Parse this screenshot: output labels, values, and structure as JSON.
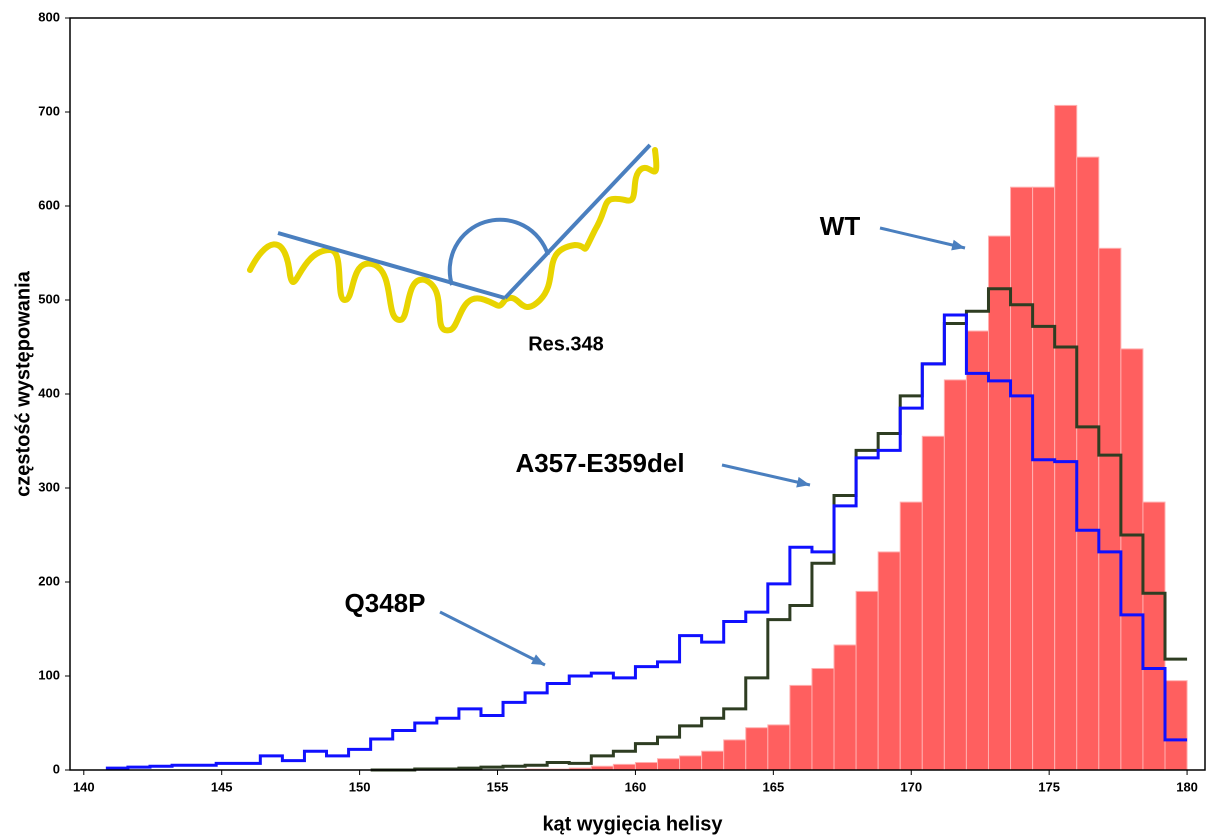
{
  "chart_data": {
    "type": "histogram",
    "xlabel": "kąt wygięcia helisy",
    "ylabel": "częstość występowania",
    "xlim": [
      139.5,
      180.65
    ],
    "ylim": [
      0,
      800
    ],
    "xticks": [
      140,
      145,
      150,
      155,
      160,
      165,
      170,
      175,
      180
    ],
    "yticks": [
      0,
      100,
      200,
      300,
      400,
      500,
      600,
      700,
      800
    ],
    "series": [
      {
        "name": "WT",
        "style": "bars",
        "color": "#ff5f5f",
        "bins": [
          156,
          156.8,
          157.6,
          158.4,
          159.2,
          160,
          160.8,
          161.6,
          162.4,
          163.2,
          164,
          164.8,
          165.6,
          166.4,
          167.2,
          168,
          168.8,
          169.6,
          170.4,
          171.2,
          172,
          172.8,
          173.6,
          174.4,
          175.2,
          176,
          176.8,
          177.6,
          178.4,
          179.2,
          180
        ],
        "values": [
          1,
          1,
          2,
          4,
          6,
          8,
          12,
          15,
          20,
          32,
          45,
          48,
          90,
          108,
          133,
          190,
          232,
          285,
          355,
          415,
          467,
          568,
          620,
          620,
          707,
          652,
          555,
          448,
          285,
          95
        ]
      },
      {
        "name": "A357-E359del",
        "style": "step",
        "color": "#2e3d22",
        "bins": [
          150.4,
          151.2,
          152,
          152.8,
          153.6,
          154.4,
          155.2,
          156,
          156.8,
          157.6,
          158.4,
          159.2,
          160,
          160.8,
          161.6,
          162.4,
          163.2,
          164,
          164.8,
          165.6,
          166.4,
          167.2,
          168,
          168.8,
          169.6,
          170.4,
          171.2,
          172,
          172.8,
          173.6,
          174.4,
          175.2,
          176,
          176.8,
          177.6,
          178.4,
          179.2,
          180
        ],
        "values": [
          0,
          0,
          1,
          1,
          2,
          3,
          4,
          5,
          8,
          7,
          15,
          20,
          28,
          35,
          47,
          55,
          65,
          98,
          160,
          175,
          220,
          292,
          340,
          358,
          398,
          432,
          475,
          488,
          512,
          495,
          472,
          450,
          365,
          335,
          250,
          188,
          118
        ]
      },
      {
        "name": "Q348P",
        "style": "step",
        "color": "#1010ff",
        "bins": [
          140.8,
          141.6,
          142.4,
          143.2,
          144,
          144.8,
          145.6,
          146.4,
          147.2,
          148,
          148.8,
          149.6,
          150.4,
          151.2,
          152,
          152.8,
          153.6,
          154.4,
          155.2,
          156,
          156.8,
          157.6,
          158.4,
          159.2,
          160,
          160.8,
          161.6,
          162.4,
          163.2,
          164,
          164.8,
          165.6,
          166.4,
          167.2,
          168,
          168.8,
          169.6,
          170.4,
          171.2,
          172,
          172.8,
          173.6,
          174.4,
          175.2,
          176,
          176.8,
          177.6,
          178.4,
          179.2,
          180
        ],
        "values": [
          2,
          3,
          4,
          5,
          5,
          7,
          7,
          15,
          10,
          20,
          15,
          22,
          33,
          42,
          50,
          55,
          65,
          58,
          72,
          82,
          92,
          100,
          103,
          98,
          110,
          115,
          143,
          136,
          158,
          168,
          198,
          237,
          232,
          281,
          332,
          340,
          385,
          432,
          484,
          422,
          414,
          398,
          330,
          328,
          255,
          232,
          165,
          108,
          32
        ]
      }
    ],
    "inset_label": "Res.348"
  }
}
